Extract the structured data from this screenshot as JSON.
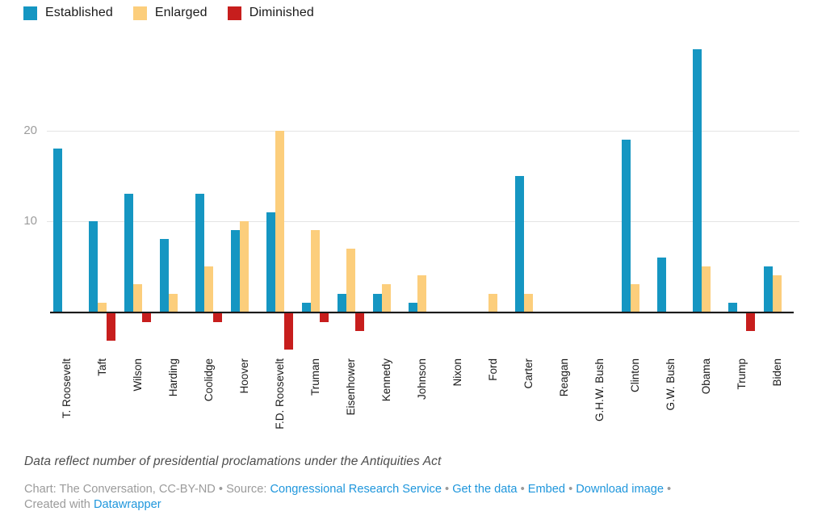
{
  "chart_data": {
    "type": "bar",
    "categories": [
      "T. Roosevelt",
      "Taft",
      "Wilson",
      "Harding",
      "Coolidge",
      "Hoover",
      "F.D. Roosevelt",
      "Truman",
      "Eisenhower",
      "Kennedy",
      "Johnson",
      "Nixon",
      "Ford",
      "Carter",
      "Reagan",
      "G.H.W. Bush",
      "Clinton",
      "G.W. Bush",
      "Obama",
      "Trump",
      "Biden"
    ],
    "series": [
      {
        "name": "Established",
        "color": "#1596c2",
        "values": [
          18,
          10,
          13,
          8,
          13,
          9,
          11,
          1,
          2,
          2,
          1,
          0,
          0,
          15,
          0,
          0,
          19,
          6,
          29,
          1,
          5
        ]
      },
      {
        "name": "Enlarged",
        "color": "#fcce7c",
        "values": [
          0,
          1,
          3,
          2,
          5,
          10,
          20,
          9,
          7,
          3,
          4,
          0,
          2,
          2,
          0,
          0,
          3,
          0,
          5,
          0,
          4
        ]
      },
      {
        "name": "Diminished",
        "color": "#c71e1d",
        "values": [
          0,
          -3,
          -1,
          0,
          -1,
          0,
          -4,
          -1,
          -2,
          0,
          0,
          0,
          0,
          0,
          0,
          0,
          0,
          0,
          0,
          -2,
          0
        ]
      }
    ],
    "title": "",
    "xlabel": "",
    "ylabel": "",
    "yticks": [
      10,
      20
    ],
    "ylim": [
      -4.5,
      29.5
    ],
    "grid": "horizontal",
    "legend_position": "top-left",
    "bar_orientation": "vertical-grouped"
  },
  "footer": {
    "note": "Data reflect number of presidential proclamations under the Antiquities Act",
    "chart_credit": "Chart: The Conversation, CC-BY-ND",
    "sep": "•",
    "source_label": "Source:",
    "source_link": "Congressional Research Service",
    "get_data_link": "Get the data",
    "embed_link": "Embed",
    "download_link": "Download image",
    "created_with": "Created with",
    "datawrapper_link": "Datawrapper"
  },
  "colors": {
    "established": "#1596c2",
    "enlarged": "#fcce7c",
    "diminished": "#c71e1d",
    "link_blue": "#1e96dc",
    "axis_line": "#1a1a1a",
    "gridline": "#e4e4e4",
    "tick_text": "#9c9c9c"
  }
}
